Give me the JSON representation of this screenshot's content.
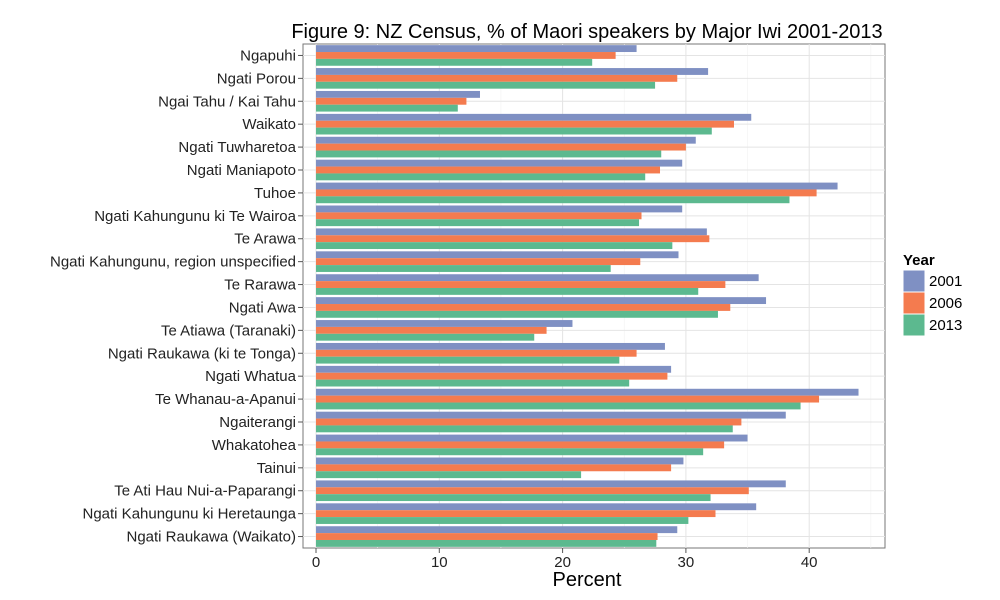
{
  "chart_data": {
    "type": "bar",
    "orientation": "horizontal",
    "title": "Figure 9: NZ Census, % of Maori speakers by Major Iwi 2001-2013",
    "xlabel": "Percent",
    "ylabel": "",
    "xlim": [
      0,
      45
    ],
    "x_ticks": [
      "0",
      "10",
      "20",
      "30",
      "40"
    ],
    "grid": true,
    "legend": {
      "title": "Year",
      "placement": "right"
    },
    "categories": [
      "Ngapuhi",
      "Ngati Porou",
      "Ngai Tahu / Kai Tahu",
      "Waikato",
      "Ngati Tuwharetoa",
      "Ngati Maniapoto",
      "Tuhoe",
      "Ngati Kahungunu ki Te Wairoa",
      "Te Arawa",
      "Ngati Kahungunu, region unspecified",
      "Te Rarawa",
      "Ngati Awa",
      "Te Atiawa (Taranaki)",
      "Ngati Raukawa (ki te Tonga)",
      "Ngati Whatua",
      "Te Whanau-a-Apanui",
      "Ngaiterangi",
      "Whakatohea",
      "Tainui",
      "Te Ati Hau Nui-a-Paparangi",
      "Ngati Kahungunu ki Heretaunga",
      "Ngati Raukawa (Waikato)"
    ],
    "series": [
      {
        "name": "2001",
        "color": "#7F90C3",
        "values": [
          26.0,
          31.8,
          13.3,
          35.3,
          30.8,
          29.7,
          42.3,
          29.7,
          31.7,
          29.4,
          35.9,
          36.5,
          20.8,
          28.3,
          28.8,
          44.0,
          38.1,
          35.0,
          29.8,
          38.1,
          35.7,
          29.3
        ]
      },
      {
        "name": "2006",
        "color": "#F47B4F",
        "values": [
          24.3,
          29.3,
          12.2,
          33.9,
          30.0,
          27.9,
          40.6,
          26.4,
          31.9,
          26.3,
          33.2,
          33.6,
          18.7,
          26.0,
          28.5,
          40.8,
          34.5,
          33.1,
          28.8,
          35.1,
          32.4,
          27.7
        ]
      },
      {
        "name": "2013",
        "color": "#5CB98F",
        "values": [
          22.4,
          27.5,
          11.5,
          32.1,
          28.0,
          26.7,
          38.4,
          26.2,
          28.9,
          23.9,
          31.0,
          32.6,
          17.7,
          24.6,
          25.4,
          39.3,
          33.8,
          31.4,
          21.5,
          32.0,
          30.2,
          27.6
        ]
      }
    ]
  }
}
